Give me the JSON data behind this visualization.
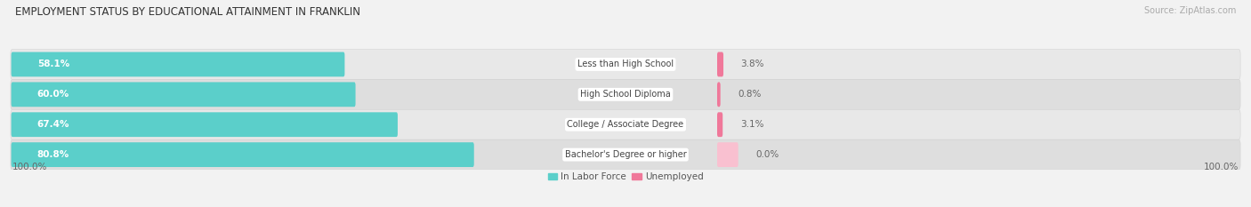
{
  "title": "EMPLOYMENT STATUS BY EDUCATIONAL ATTAINMENT IN FRANKLIN",
  "source": "Source: ZipAtlas.com",
  "categories": [
    "Less than High School",
    "High School Diploma",
    "College / Associate Degree",
    "Bachelor's Degree or higher"
  ],
  "labor_force": [
    58.1,
    60.0,
    67.4,
    80.8
  ],
  "unemployed": [
    3.8,
    0.8,
    3.1,
    0.0
  ],
  "labor_force_color": "#5BCFCA",
  "unemployed_color": "#F0789A",
  "unemployed_color_light": "#F9C0D0",
  "bg_color": "#f2f2f2",
  "row_bg_even": "#e8e8e8",
  "row_bg_odd": "#dedede",
  "label_bg": "#ffffff",
  "left_axis_label": "100.0%",
  "right_axis_label": "100.0%",
  "title_fontsize": 8.5,
  "source_fontsize": 7,
  "bar_label_fontsize": 7.5,
  "cat_label_fontsize": 7,
  "axis_label_fontsize": 7.5,
  "legend_fontsize": 7.5
}
